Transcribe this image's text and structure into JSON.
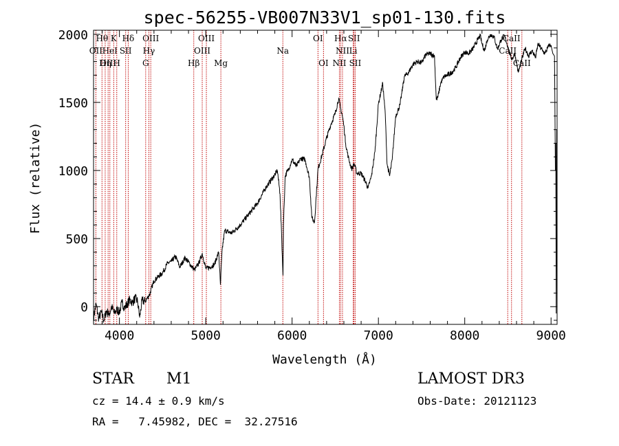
{
  "chart_data": {
    "type": "line",
    "title": "spec-56255-VB007N33V1_sp01-130.fits",
    "xlabel": "Wavelength (Å)",
    "ylabel": "Flux (relative)",
    "xlim": [
      3700,
      9070
    ],
    "ylim": [
      -130,
      2030
    ],
    "xticks": [
      4000,
      5000,
      6000,
      7000,
      8000,
      9000
    ],
    "yticks": [
      0,
      500,
      1000,
      1500,
      2000
    ],
    "series": [
      {
        "name": "flux",
        "x": [
          3700,
          3730,
          3760,
          3790,
          3820,
          3850,
          3880,
          3910,
          3940,
          3970,
          4000,
          4030,
          4060,
          4090,
          4120,
          4150,
          4180,
          4210,
          4235,
          4260,
          4300,
          4350,
          4400,
          4450,
          4500,
          4560,
          4600,
          4650,
          4700,
          4760,
          4820,
          4870,
          4920,
          4960,
          5000,
          5050,
          5100,
          5150,
          5170,
          5190,
          5220,
          5300,
          5400,
          5500,
          5600,
          5700,
          5780,
          5830,
          5860,
          5880,
          5890,
          5895,
          5900,
          5920,
          5960,
          6000,
          6050,
          6100,
          6150,
          6200,
          6230,
          6260,
          6300,
          6350,
          6400,
          6450,
          6500,
          6540,
          6560,
          6580,
          6600,
          6620,
          6650,
          6690,
          6720,
          6750,
          6800,
          6850,
          6880,
          6920,
          6960,
          7000,
          7050,
          7080,
          7100,
          7130,
          7160,
          7200,
          7250,
          7300,
          7350,
          7400,
          7450,
          7500,
          7550,
          7600,
          7650,
          7670,
          7690,
          7720,
          7760,
          7800,
          7850,
          7900,
          7950,
          8000,
          8050,
          8100,
          8150,
          8180,
          8200,
          8230,
          8260,
          8300,
          8340,
          8380,
          8420,
          8460,
          8500,
          8530,
          8550,
          8580,
          8620,
          8660,
          8700,
          8740,
          8780,
          8820,
          8850,
          8870,
          8900,
          8930,
          8960,
          8980,
          9000,
          9020,
          9040,
          9050,
          9055,
          9060,
          9065,
          9070
        ],
        "values": [
          -80,
          20,
          -90,
          -40,
          -100,
          -30,
          -60,
          0,
          -50,
          -20,
          -40,
          30,
          -10,
          20,
          50,
          30,
          60,
          40,
          -80,
          40,
          40,
          90,
          190,
          220,
          250,
          320,
          330,
          370,
          290,
          360,
          310,
          270,
          320,
          390,
          280,
          290,
          310,
          400,
          160,
          420,
          560,
          540,
          600,
          680,
          760,
          880,
          950,
          1000,
          830,
          500,
          300,
          230,
          600,
          960,
          1010,
          1080,
          1030,
          1090,
          1080,
          950,
          650,
          620,
          1010,
          1120,
          1240,
          1340,
          1420,
          1530,
          1460,
          1410,
          1330,
          1200,
          1100,
          1010,
          1050,
          980,
          980,
          920,
          870,
          960,
          1140,
          1490,
          1640,
          1410,
          1050,
          960,
          1080,
          1400,
          1480,
          1690,
          1720,
          1780,
          1800,
          1790,
          1850,
          1860,
          1840,
          1520,
          1540,
          1640,
          1690,
          1700,
          1720,
          1760,
          1830,
          1870,
          1860,
          1900,
          1960,
          1990,
          1930,
          1880,
          1960,
          2000,
          1980,
          1890,
          1960,
          1990,
          1910,
          1840,
          1820,
          1860,
          1720,
          1810,
          1900,
          1840,
          1880,
          1830,
          1930,
          1910,
          1880,
          1860,
          1900,
          1920,
          1920,
          1860,
          1840,
          1000,
          1200,
          -50,
          1300,
          1180
        ]
      }
    ],
    "line_ids": [
      {
        "name": "Hθ",
        "x": 3798,
        "row": 1
      },
      {
        "name": "K",
        "x": 3934,
        "row": 1
      },
      {
        "name": "Hδ",
        "x": 4102,
        "row": 1
      },
      {
        "name": "OIII",
        "x": 4363,
        "row": 1
      },
      {
        "name": "OIII",
        "x": 5007,
        "row": 1
      },
      {
        "name": "OI",
        "x": 6300,
        "row": 1
      },
      {
        "name": "Hα",
        "x": 6563,
        "row": 1
      },
      {
        "name": "SII",
        "x": 6717,
        "row": 1
      },
      {
        "name": "CaII",
        "x": 8542,
        "row": 1
      },
      {
        "name": "OII",
        "x": 3727,
        "row": 2
      },
      {
        "name": "HeI",
        "x": 3889,
        "row": 2
      },
      {
        "name": "SII",
        "x": 4072,
        "row": 2
      },
      {
        "name": "Hγ",
        "x": 4341,
        "row": 2
      },
      {
        "name": "OIII",
        "x": 4959,
        "row": 2
      },
      {
        "name": "Na",
        "x": 5893,
        "row": 2
      },
      {
        "name": "NII",
        "x": 6584,
        "row": 2
      },
      {
        "name": "Li",
        "x": 6708,
        "row": 2
      },
      {
        "name": "CaII",
        "x": 8498,
        "row": 2
      },
      {
        "name": "OIII",
        "x": 3869,
        "row": 3
      },
      {
        "name": "Hη",
        "x": 3835,
        "row": 3
      },
      {
        "name": "H",
        "x": 3969,
        "row": 3
      },
      {
        "name": "G",
        "x": 4304,
        "row": 3
      },
      {
        "name": "Hβ",
        "x": 4861,
        "row": 3
      },
      {
        "name": "Mg",
        "x": 5175,
        "row": 3
      },
      {
        "name": "OI",
        "x": 6364,
        "row": 3
      },
      {
        "name": "NII",
        "x": 6548,
        "row": 3
      },
      {
        "name": "SII",
        "x": 6731,
        "row": 3
      },
      {
        "name": "CaII",
        "x": 8662,
        "row": 3
      }
    ]
  },
  "info": {
    "object_class": "STAR",
    "subclass": "M1",
    "survey": "LAMOST DR3",
    "redshift": "cz = 14.4 ± 0.9 km/s",
    "obs_date": "Obs-Date: 20121123",
    "coords": "RA =   7.45982, DEC =  32.27516"
  }
}
